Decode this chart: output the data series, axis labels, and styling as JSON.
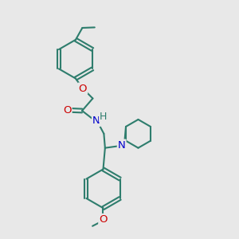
{
  "bg_color": "#e8e8e8",
  "bond_color": "#2e7d6d",
  "O_color": "#cc0000",
  "N_color": "#0000cc",
  "bond_lw": 1.5,
  "font_size": 9.0,
  "xlim": [
    0,
    10
  ],
  "ylim": [
    0,
    10
  ]
}
